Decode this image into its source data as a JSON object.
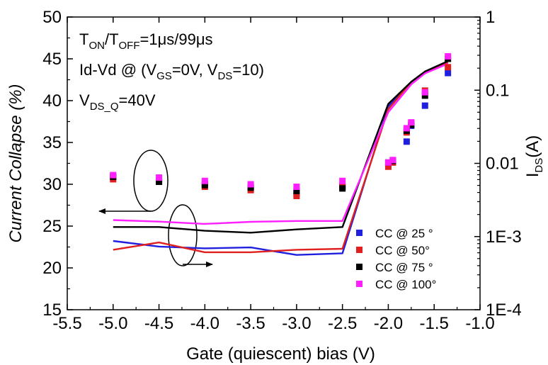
{
  "chart_data": {
    "type": "scatter",
    "xlabel": "Gate (quiescent) bias (V)",
    "ylabel_left": "Current Collapse (%)",
    "ylabel_right_main": "I",
    "ylabel_right_sub": "DS",
    "ylabel_right_unit": "(A)",
    "xlim": [
      -5.5,
      -1.0
    ],
    "ylim_left": [
      15,
      50
    ],
    "ylim_right": [
      0.0001,
      1
    ],
    "right_scale": "log",
    "x_ticks": [
      -5.5,
      -5.0,
      -4.5,
      -4.0,
      -3.5,
      -3.0,
      -2.5,
      -2.0,
      -1.5,
      -1.0
    ],
    "x_tick_labels": [
      "-5.5",
      "-5.0",
      "-4.5",
      "-4.0",
      "-3.5",
      "-3.0",
      "-2.5",
      "-2.0",
      "-1.5",
      "-1.0"
    ],
    "y_left_ticks": [
      15,
      20,
      25,
      30,
      35,
      40,
      45,
      50
    ],
    "y_left_tick_labels": [
      "15",
      "20",
      "25",
      "30",
      "35",
      "40",
      "45",
      "50"
    ],
    "y_right_ticks": [
      0.0001,
      0.001,
      0.01,
      0.1,
      1
    ],
    "y_right_tick_labels": [
      "1E-4",
      "1E-3",
      "0.01",
      "0.1",
      "1"
    ],
    "annotations": [
      {
        "parts": [
          {
            "t": "T"
          },
          {
            "t": "ON",
            "sub": true
          },
          {
            "t": "/T"
          },
          {
            "t": "OFF",
            "sub": true
          },
          {
            "t": "=1μs/99μs"
          }
        ]
      },
      {
        "parts": [
          {
            "t": "Id-Vd @ (V"
          },
          {
            "t": "GS",
            "sub": true
          },
          {
            "t": "=0V, V"
          },
          {
            "t": "DS",
            "sub": true
          },
          {
            "t": "=10)"
          }
        ]
      },
      {
        "parts": [
          {
            "t": "V"
          },
          {
            "t": "DS_Q",
            "sub": true
          },
          {
            "t": "=40V"
          }
        ]
      }
    ],
    "grid": false,
    "legend_position": "bottom-right",
    "scatter_series": [
      {
        "name": "CC @ 25 °",
        "color": "#1f1fe0",
        "points": [
          [
            -5.0,
            30.9
          ],
          [
            -4.5,
            30.5
          ],
          [
            -4.0,
            30.0
          ],
          [
            -3.5,
            29.7
          ],
          [
            -3.0,
            28.9
          ],
          [
            -2.5,
            29.8
          ],
          [
            -2.0,
            32.5
          ],
          [
            -1.95,
            32.8
          ],
          [
            -1.8,
            35.1
          ],
          [
            -1.75,
            37.0
          ],
          [
            -1.6,
            39.4
          ],
          [
            -1.35,
            43.3
          ]
        ]
      },
      {
        "name": "CC @ 50°",
        "color": "#e0201f",
        "points": [
          [
            -5.0,
            30.6
          ],
          [
            -4.5,
            30.3
          ],
          [
            -4.0,
            29.7
          ],
          [
            -3.5,
            29.3
          ],
          [
            -3.0,
            28.6
          ],
          [
            -2.5,
            29.7
          ],
          [
            -2.0,
            32.1
          ],
          [
            -1.95,
            32.6
          ],
          [
            -1.8,
            36.2
          ],
          [
            -1.75,
            37.3
          ],
          [
            -1.6,
            41.2
          ],
          [
            -1.35,
            44.0
          ]
        ]
      },
      {
        "name": "CC @ 75 °",
        "color": "#000000",
        "points": [
          [
            -5.0,
            30.9
          ],
          [
            -4.5,
            30.3
          ],
          [
            -4.0,
            29.9
          ],
          [
            -3.5,
            29.6
          ],
          [
            -3.0,
            29.2
          ],
          [
            -2.5,
            29.5
          ],
          [
            -2.0,
            32.6
          ],
          [
            -1.95,
            32.8
          ],
          [
            -1.8,
            36.4
          ],
          [
            -1.75,
            37.1
          ],
          [
            -1.6,
            40.6
          ],
          [
            -1.35,
            45.0
          ]
        ]
      },
      {
        "name": "CC @ 100°",
        "color": "#ff1fff",
        "points": [
          [
            -5.0,
            31.1
          ],
          [
            -4.5,
            30.8
          ],
          [
            -4.0,
            30.4
          ],
          [
            -3.5,
            30.0
          ],
          [
            -3.0,
            29.7
          ],
          [
            -2.5,
            30.4
          ],
          [
            -2.0,
            32.6
          ],
          [
            -1.95,
            32.9
          ],
          [
            -1.8,
            36.7
          ],
          [
            -1.75,
            37.4
          ],
          [
            -1.6,
            41.0
          ],
          [
            -1.35,
            45.3
          ]
        ]
      }
    ],
    "line_series": [
      {
        "color": "#1f1fe0",
        "points": [
          [
            -5.0,
            0.00087
          ],
          [
            -4.5,
            0.00073
          ],
          [
            -4.0,
            0.00069
          ],
          [
            -3.5,
            0.00071
          ],
          [
            -3.0,
            0.00056
          ],
          [
            -2.5,
            0.00059
          ],
          [
            -2.0,
            0.06
          ],
          [
            -1.75,
            0.13
          ],
          [
            -1.6,
            0.18
          ],
          [
            -1.35,
            0.24
          ]
        ]
      },
      {
        "color": "#e0201f",
        "points": [
          [
            -5.0,
            0.00066
          ],
          [
            -4.5,
            0.00083
          ],
          [
            -4.0,
            0.00061
          ],
          [
            -3.5,
            0.00061
          ],
          [
            -3.0,
            0.00066
          ],
          [
            -2.5,
            0.00068
          ],
          [
            -2.0,
            0.055
          ],
          [
            -1.75,
            0.13
          ],
          [
            -1.6,
            0.18
          ],
          [
            -1.35,
            0.24
          ]
        ]
      },
      {
        "color": "#000000",
        "points": [
          [
            -5.0,
            0.00135
          ],
          [
            -4.5,
            0.00135
          ],
          [
            -4.0,
            0.0012
          ],
          [
            -3.5,
            0.00113
          ],
          [
            -3.0,
            0.00125
          ],
          [
            -2.5,
            0.00135
          ],
          [
            -2.0,
            0.065
          ],
          [
            -1.75,
            0.13
          ],
          [
            -1.6,
            0.18
          ],
          [
            -1.35,
            0.25
          ]
        ]
      },
      {
        "color": "#ff1fff",
        "points": [
          [
            -5.0,
            0.00168
          ],
          [
            -4.5,
            0.0016
          ],
          [
            -4.0,
            0.00149
          ],
          [
            -3.5,
            0.00159
          ],
          [
            -3.0,
            0.00163
          ],
          [
            -2.5,
            0.00163
          ],
          [
            -2.0,
            0.05
          ],
          [
            -1.75,
            0.12
          ],
          [
            -1.6,
            0.17
          ],
          [
            -1.35,
            0.23
          ]
        ]
      }
    ]
  }
}
